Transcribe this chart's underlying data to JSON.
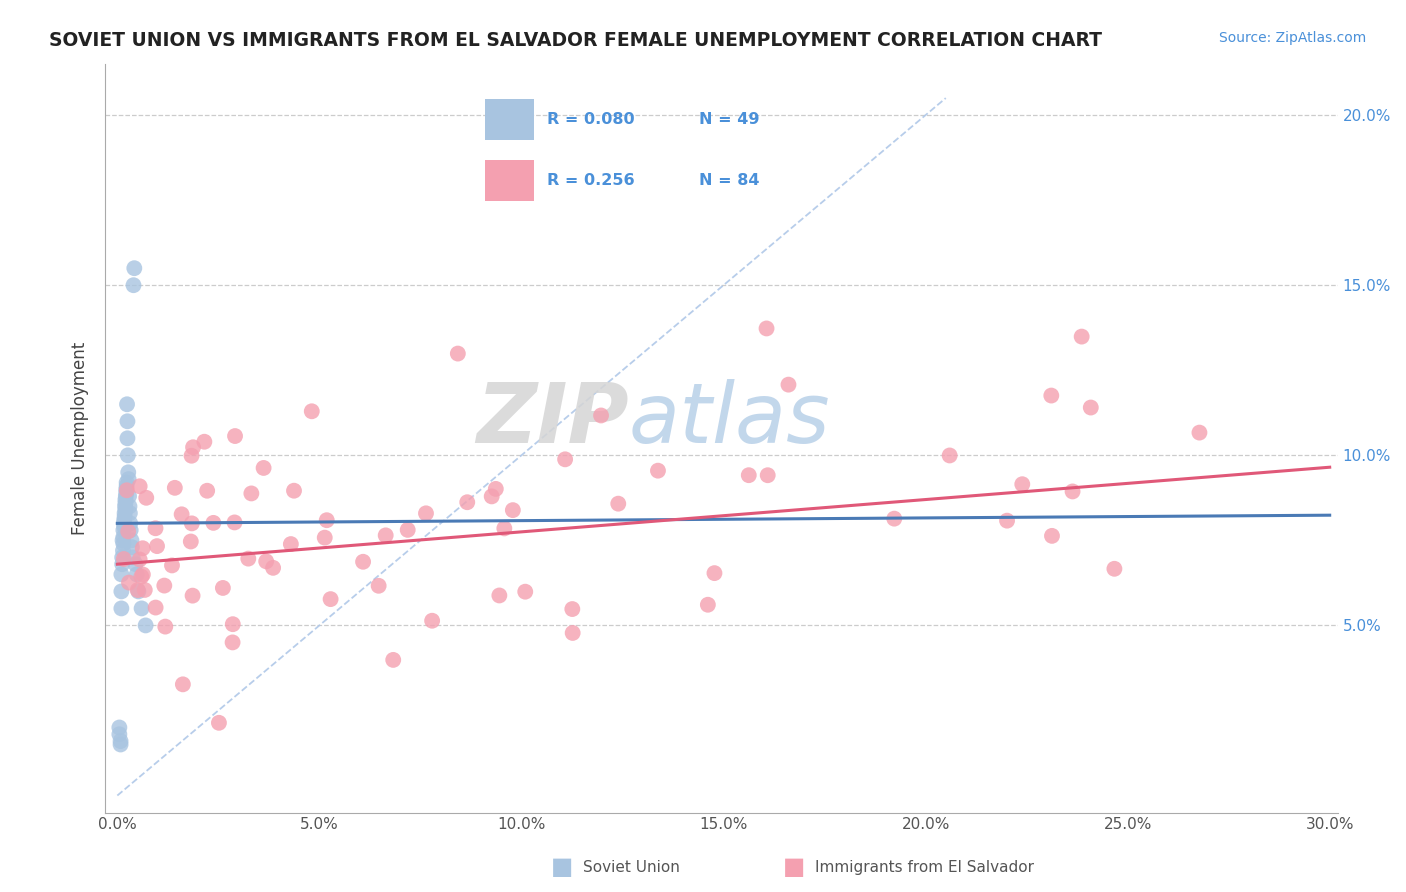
{
  "title": "SOVIET UNION VS IMMIGRANTS FROM EL SALVADOR FEMALE UNEMPLOYMENT CORRELATION CHART",
  "source_text": "Source: ZipAtlas.com",
  "ylabel": "Female Unemployment",
  "color_soviet": "#a8c4e0",
  "color_salvador": "#f4a0b0",
  "color_line_soviet": "#4a7ab5",
  "color_line_salvador": "#e05878",
  "color_diagonal": "#b0c8e8",
  "watermark_zip": "ZIP",
  "watermark_atlas": "atlas",
  "legend_r1": "R = 0.080",
  "legend_n1": "N = 49",
  "legend_r2": "R = 0.256",
  "legend_n2": "N = 84"
}
